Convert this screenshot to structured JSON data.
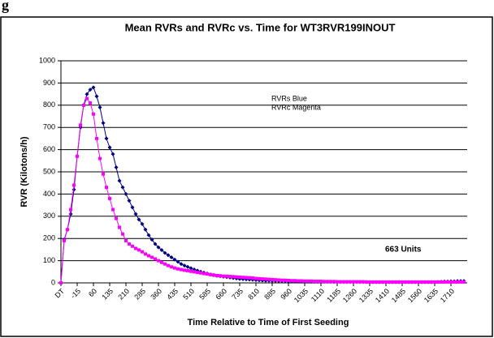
{
  "header_fragment": "g",
  "chart_data": {
    "type": "line",
    "title": "Mean RVRs and RVRc vs. Time for WT3RVR199INOUT",
    "x_label": "Time Relative to Time of First Seeding",
    "y_label": "RVR (Kilotons/h)",
    "annotations": [
      "RVRs  Blue",
      "RVRc  Magenta",
      "663 Units"
    ],
    "categories": [
      "DT",
      null,
      null,
      null,
      null,
      "-15",
      null,
      null,
      null,
      null,
      "60",
      null,
      null,
      null,
      null,
      "135",
      null,
      null,
      null,
      null,
      "210",
      null,
      null,
      null,
      null,
      "285",
      null,
      null,
      null,
      null,
      "360",
      null,
      null,
      null,
      null,
      "435",
      null,
      null,
      null,
      null,
      "510",
      null,
      null,
      null,
      null,
      "585",
      null,
      null,
      null,
      null,
      "660",
      null,
      null,
      null,
      null,
      "735",
      null,
      null,
      null,
      null,
      "810",
      null,
      null,
      null,
      null,
      "885",
      null,
      null,
      null,
      null,
      "960",
      null,
      null,
      null,
      null,
      "1035",
      null,
      null,
      null,
      null,
      "1110",
      null,
      null,
      null,
      null,
      "1185",
      null,
      null,
      null,
      null,
      "1260",
      null,
      null,
      null,
      null,
      "1335",
      null,
      null,
      null,
      null,
      "1410",
      null,
      null,
      null,
      null,
      "1485",
      null,
      null,
      null,
      null,
      "1560",
      null,
      null,
      null,
      null,
      "1635",
      null,
      null,
      null,
      null,
      "1710",
      null,
      null,
      null,
      null
    ],
    "series": [
      {
        "color": "#000080",
        "marker": "diamond",
        "values": [
          0,
          195,
          240,
          310,
          420,
          570,
          700,
          800,
          850,
          870,
          880,
          840,
          790,
          720,
          650,
          610,
          580,
          520,
          460,
          430,
          400,
          370,
          340,
          310,
          285,
          265,
          240,
          215,
          195,
          175,
          160,
          148,
          135,
          125,
          115,
          105,
          95,
          85,
          78,
          72,
          66,
          60,
          55,
          50,
          46,
          42,
          38,
          35,
          32,
          30,
          28,
          26,
          24,
          22,
          20,
          18,
          17,
          16,
          15,
          14,
          13,
          12,
          11,
          10,
          10,
          9,
          9,
          8,
          8,
          8,
          7,
          7,
          7,
          6,
          6,
          6,
          6,
          5,
          5,
          5,
          5,
          5,
          5,
          5,
          4,
          4,
          4,
          4,
          4,
          4,
          4,
          4,
          4,
          4,
          4,
          3,
          3,
          3,
          3,
          3,
          3,
          3,
          3,
          3,
          3,
          3,
          3,
          3,
          3,
          3,
          3,
          3,
          3,
          3,
          3,
          3,
          4,
          5,
          6,
          6,
          7,
          7,
          8,
          8,
          8
        ]
      },
      {
        "color": "#ff00ff",
        "marker": "square",
        "values": [
          0,
          190,
          240,
          330,
          440,
          570,
          710,
          800,
          830,
          810,
          760,
          650,
          560,
          490,
          430,
          380,
          330,
          290,
          250,
          220,
          190,
          175,
          165,
          155,
          148,
          140,
          130,
          122,
          115,
          108,
          100,
          92,
          85,
          78,
          72,
          67,
          63,
          60,
          57,
          55,
          52,
          50,
          47,
          45,
          42,
          40,
          37,
          35,
          33,
          32,
          30,
          30,
          29,
          28,
          27,
          26,
          25,
          24,
          23,
          22,
          20,
          19,
          18,
          17,
          16,
          15,
          14,
          13,
          12,
          12,
          11,
          10,
          10,
          9,
          9,
          8,
          8,
          8,
          7,
          7,
          7,
          6,
          6,
          6,
          6,
          5,
          5,
          5,
          5,
          5,
          5,
          5,
          5,
          5,
          4,
          4,
          4,
          4,
          4,
          4,
          4,
          4,
          4,
          4,
          4,
          4,
          4,
          4,
          4,
          4,
          4,
          4,
          4,
          4,
          4,
          4,
          4,
          4,
          4,
          4,
          4,
          4,
          4,
          4,
          4
        ]
      }
    ],
    "ylim": [
      0,
      1000
    ],
    "yticks": [
      0,
      100,
      200,
      300,
      400,
      500,
      600,
      700,
      800,
      900,
      1000
    ],
    "grid": true
  }
}
